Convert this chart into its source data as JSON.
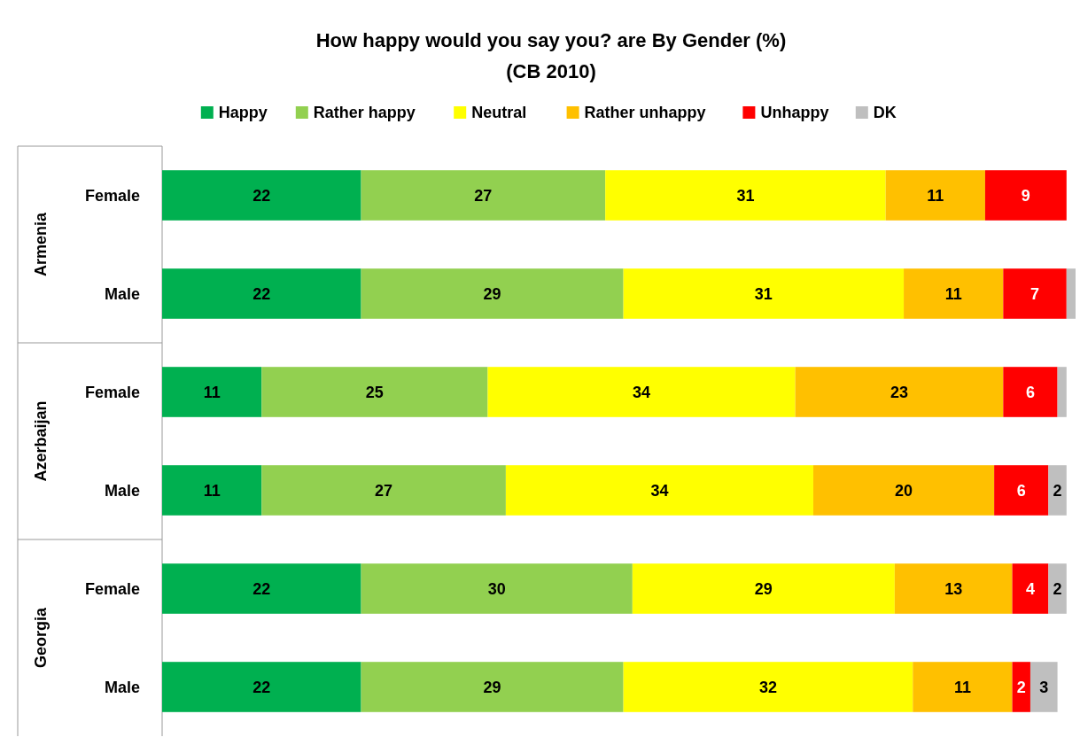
{
  "chart_data": {
    "type": "bar",
    "orientation": "horizontal",
    "stacked": true,
    "title": "How happy would you say you? are By Gender (%)",
    "subtitle": "(CB 2010)",
    "categories": [
      "Female",
      "Male",
      "Female",
      "Male",
      "Female",
      "Male"
    ],
    "annotations": [
      "Armenia",
      "Azerbaijan",
      "Georgia"
    ],
    "xlim": [
      0,
      101
    ],
    "legend": "top",
    "grid": false,
    "tick_labels": "y",
    "series": [
      {
        "name": "Happy",
        "color": "#00b050",
        "values": [
          22,
          22,
          11,
          11,
          22,
          22
        ],
        "value_labels": [
          "22",
          "22",
          "11",
          "11",
          "22",
          "22"
        ]
      },
      {
        "name": "Rather happy",
        "color": "#92d050",
        "values": [
          27,
          29,
          25,
          27,
          30,
          29
        ],
        "value_labels": [
          "27",
          "29",
          "25",
          "27",
          "30",
          "29"
        ]
      },
      {
        "name": "Neutral",
        "color": "#ffff00",
        "values": [
          31,
          31,
          34,
          34,
          29,
          32
        ],
        "value_labels": [
          "31",
          "31",
          "34",
          "34",
          "29",
          "32"
        ]
      },
      {
        "name": "Rather unhappy",
        "color": "#ffc000",
        "values": [
          11,
          11,
          23,
          20,
          13,
          11
        ],
        "value_labels": [
          "11",
          "11",
          "23",
          "20",
          "13",
          "11"
        ]
      },
      {
        "name": "Unhappy",
        "color": "#ff0000",
        "values": [
          9,
          7,
          6,
          6,
          4,
          2
        ],
        "value_labels": [
          "9",
          "7",
          "6",
          "6",
          "4",
          "2"
        ]
      },
      {
        "name": "DK",
        "color": "#bfbfbf",
        "values": [
          null,
          1,
          1,
          2,
          2,
          3
        ],
        "value_labels": [
          null,
          null,
          null,
          "2",
          "2",
          "3"
        ]
      }
    ]
  }
}
